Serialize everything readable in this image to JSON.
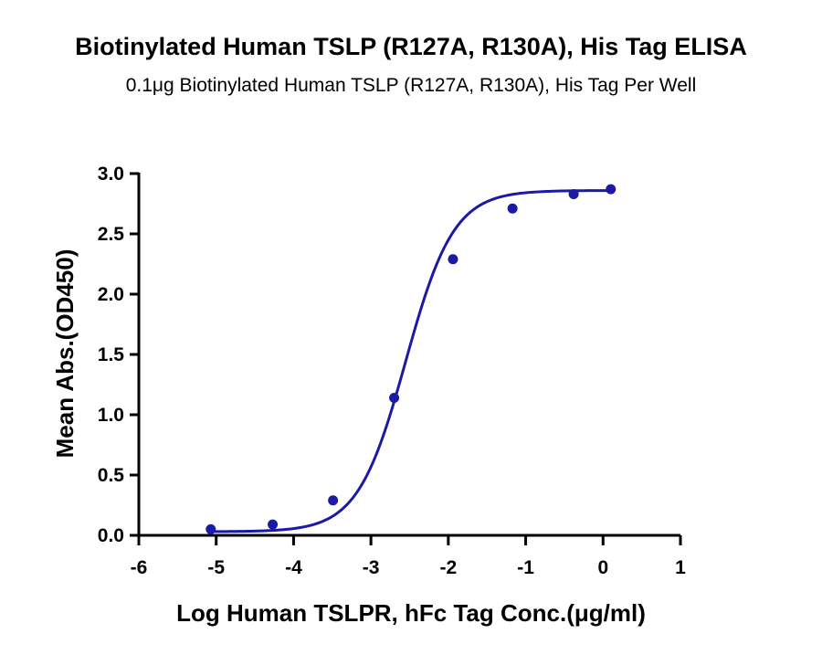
{
  "chart_data": {
    "type": "scatter",
    "title": "Biotinylated Human TSLP (R127A, R130A), His Tag ELISA",
    "subtitle": "0.1μg Biotinylated Human TSLP (R127A, R130A), His Tag Per Well",
    "xlabel": "Log Human TSLPR, hFc Tag Conc.(μg/ml)",
    "ylabel": "Mean Abs.(OD450)",
    "xlim": [
      -6,
      1
    ],
    "ylim": [
      0,
      3
    ],
    "x_ticks": [
      -6,
      -5,
      -4,
      -3,
      -2,
      -1,
      0,
      1
    ],
    "x_tick_labels": [
      "-6",
      "-5",
      "-4",
      "-3",
      "-2",
      "-1",
      "0",
      "1"
    ],
    "y_ticks": [
      0,
      0.5,
      1,
      1.5,
      2,
      2.5,
      3
    ],
    "y_tick_labels": [
      "0.0",
      "0.5",
      "1.0",
      "1.5",
      "2.0",
      "2.5",
      "3.0"
    ],
    "grid": false,
    "colors": {
      "series": "#1a1aa6",
      "axis": "#000000"
    },
    "series": [
      {
        "x": [
          -5.07,
          -4.27,
          -3.49,
          -2.7,
          -1.94,
          -1.17,
          -0.38,
          0.1
        ],
        "y": [
          0.05,
          0.09,
          0.29,
          1.14,
          2.29,
          2.71,
          2.83,
          2.87
        ]
      }
    ],
    "fit": {
      "model": "4PL",
      "bottom": 0.03,
      "top": 2.86,
      "log_ec50": -2.55,
      "hill": 1.4,
      "x_range": [
        -5.07,
        0.1
      ]
    }
  }
}
